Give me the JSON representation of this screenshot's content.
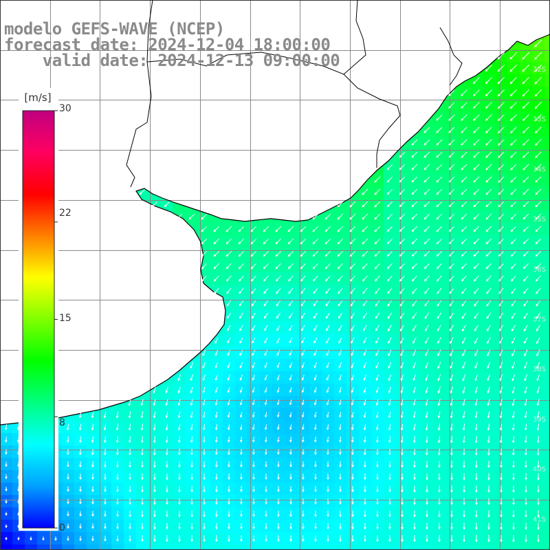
{
  "header": {
    "line1": "modelo GEFS-WAVE (NCEP)",
    "line2": "forecast date: 2024-12-04 18:00:00",
    "line3": "valid date: 2024-12-13 09:00:00"
  },
  "colorbar": {
    "units": "[m/s]",
    "ticks": [
      "30",
      "22",
      "15",
      "8",
      "0"
    ],
    "tick_values": [
      30,
      22,
      15,
      8,
      0
    ],
    "range": [
      0,
      30
    ],
    "stops": [
      "#0000ff",
      "#00a0ff",
      "#00ffff",
      "#00ff80",
      "#00ff00",
      "#80ff00",
      "#ffff00",
      "#ff8000",
      "#ff0000",
      "#ff0060",
      "#c00080"
    ]
  },
  "map": {
    "variable": "wind speed and direction",
    "land_color": "#ffffff",
    "grid_color": "#888888",
    "coast_color": "#000000",
    "arrow_color": "#ffffff",
    "lat_labels": [
      "32S",
      "33S",
      "34S",
      "35S",
      "36S",
      "37S",
      "38S",
      "39S",
      "40S",
      "41S"
    ]
  }
}
